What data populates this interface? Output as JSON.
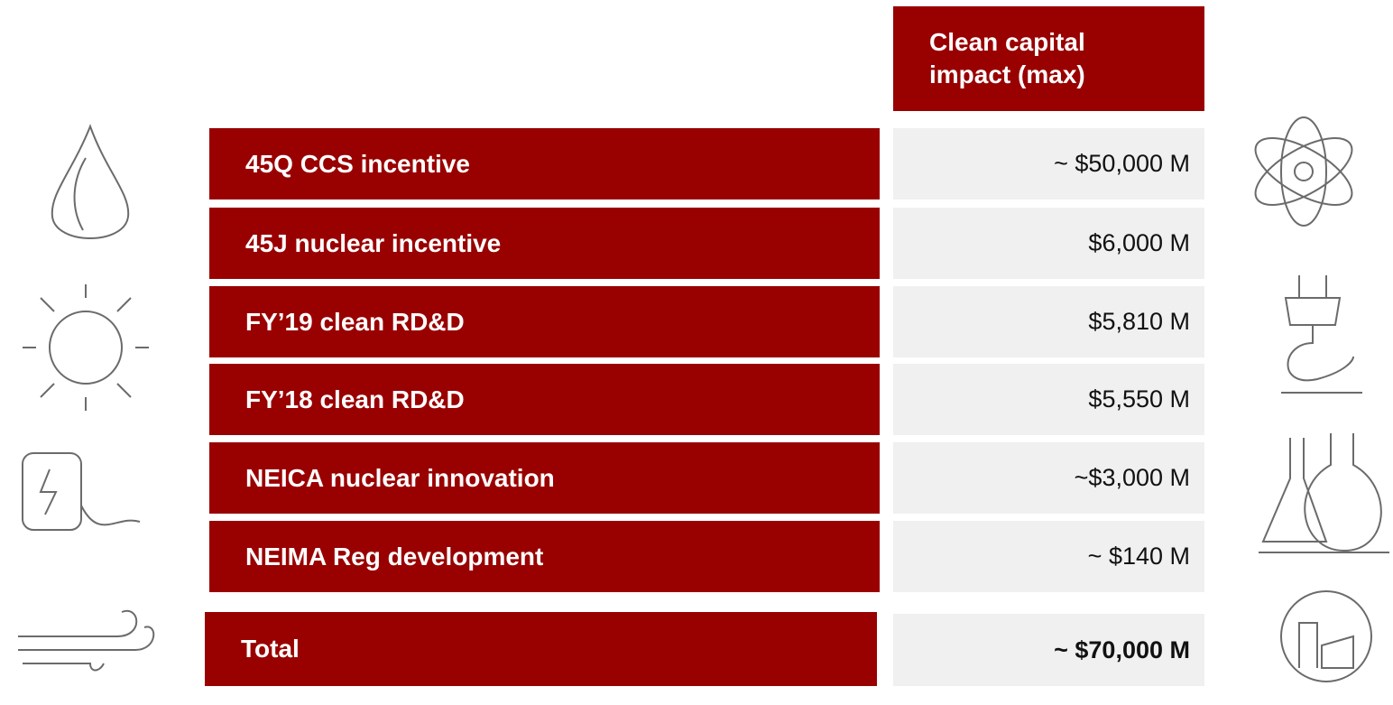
{
  "header": {
    "title": "Clean capital impact (max)"
  },
  "rows": [
    {
      "label": "45Q CCS incentive",
      "value": "~ $50,000 M"
    },
    {
      "label": "45J nuclear incentive",
      "value": "$6,000 M"
    },
    {
      "label": "FY’19 clean RD&D",
      "value": "$5,810 M"
    },
    {
      "label": "FY’18 clean RD&D",
      "value": "$5,550 M"
    },
    {
      "label": "NEICA nuclear innovation",
      "value": "~$3,000 M"
    },
    {
      "label": "NEIMA Reg development",
      "value": "~ $140 M"
    }
  ],
  "total": {
    "label": "Total",
    "value": "~ $70,000 M"
  }
}
